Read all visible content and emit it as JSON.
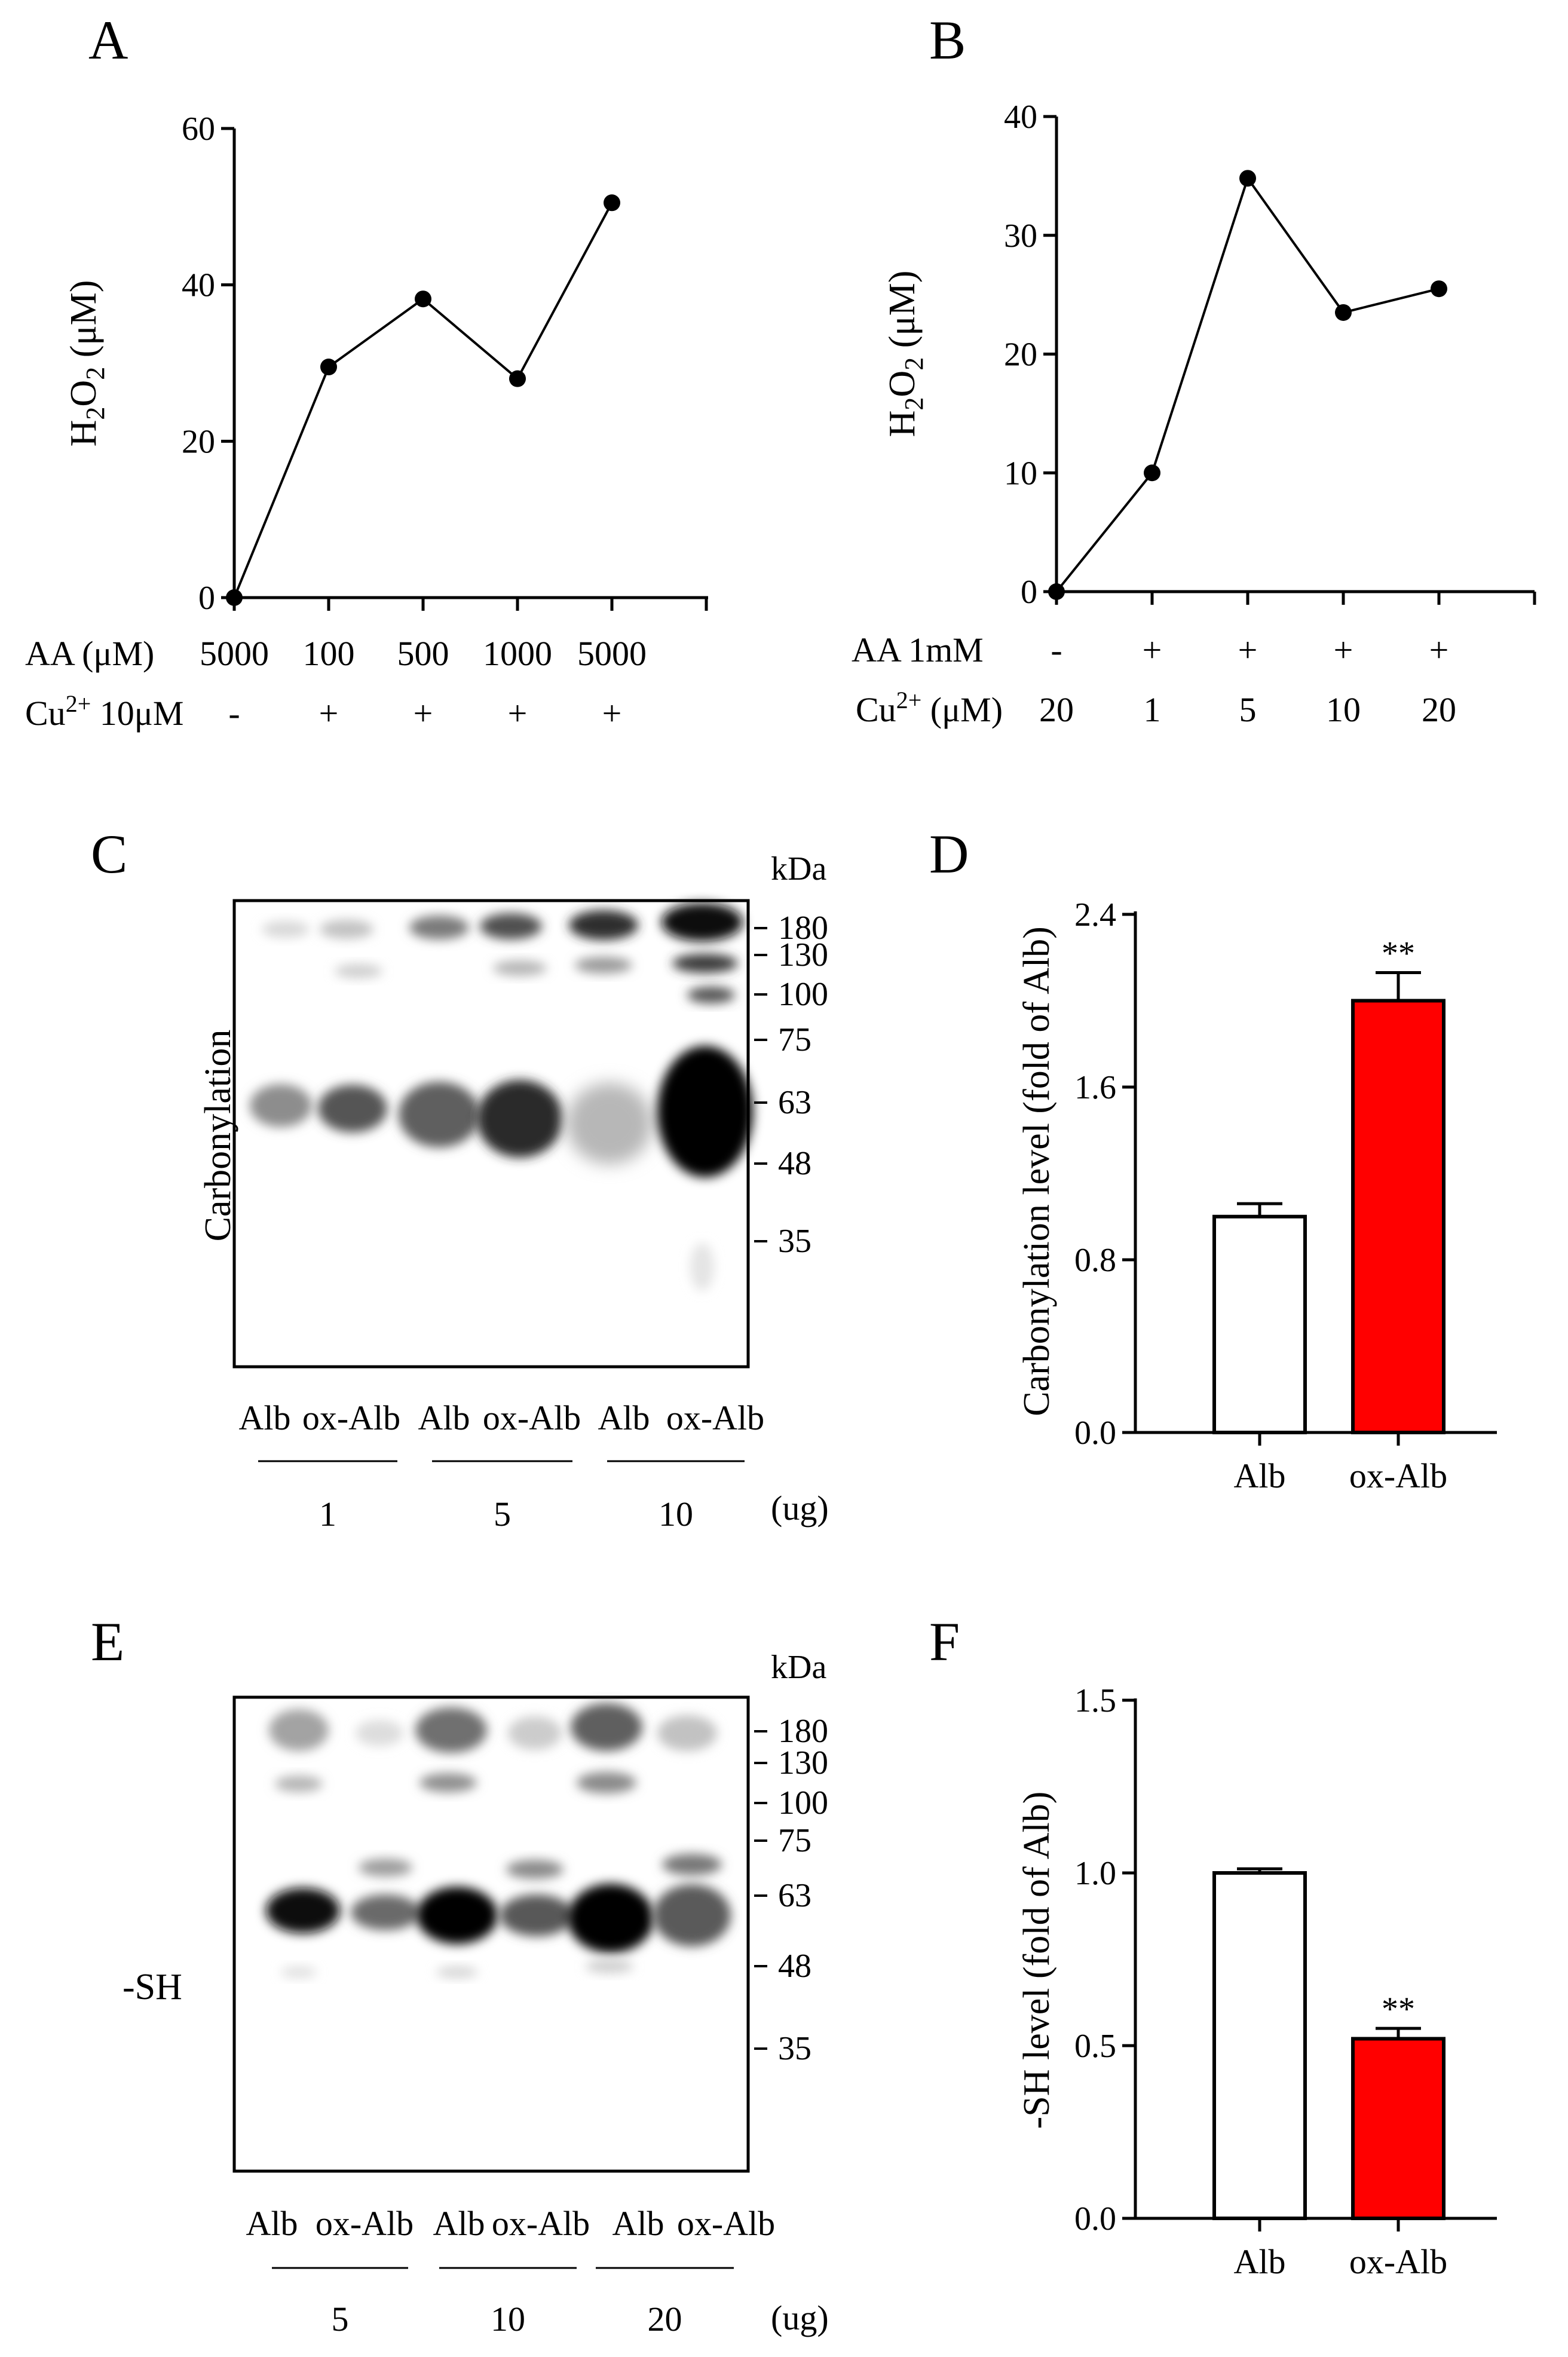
{
  "panels": {
    "A": "A",
    "B": "B",
    "C": "C",
    "D": "D",
    "E": "E",
    "F": "F"
  },
  "panel_A": {
    "y_title_main": "H",
    "y_title_sub1": "2",
    "y_title_mid": "O",
    "y_title_sub2": "2",
    "y_title_unit": " (μM)",
    "row1_label": "AA (μM)",
    "row1_values": [
      "5000",
      "100",
      "500",
      "1000",
      "5000"
    ],
    "row2_label_main": "Cu",
    "row2_label_sup": "2+",
    "row2_label_rest": " 10μM",
    "row2_values": [
      "-",
      "+",
      "+",
      "+",
      "+"
    ]
  },
  "panel_B": {
    "y_title_main": "H",
    "y_title_sub1": "2",
    "y_title_mid": "O",
    "y_title_sub2": "2",
    "y_title_unit": " (μM)",
    "row1_label": "AA 1mM",
    "row1_values": [
      "-",
      "+",
      "+",
      "+",
      "+"
    ],
    "row2_label_main": "Cu",
    "row2_label_sup": "2+",
    "row2_label_rest": " (μM)",
    "row2_values": [
      "20",
      "1",
      "5",
      "10",
      "20"
    ]
  },
  "panel_C": {
    "blot_label": "Carbonylation",
    "kda_label": "kDa",
    "markers": [
      "180",
      "130",
      "100",
      "75",
      "63",
      "48",
      "35"
    ],
    "lanes": [
      "Alb",
      "ox-Alb",
      "Alb",
      "ox-Alb",
      "Alb",
      "ox-Alb"
    ],
    "groups": [
      "1",
      "5",
      "10"
    ],
    "unit": "(ug)"
  },
  "panel_E": {
    "blot_label": "-SH",
    "kda_label": "kDa",
    "markers": [
      "180",
      "130",
      "100",
      "75",
      "63",
      "48",
      "35"
    ],
    "lanes": [
      "Alb",
      "ox-Alb",
      "Alb",
      "ox-Alb",
      "Alb",
      "ox-Alb"
    ],
    "groups": [
      "5",
      "10",
      "20"
    ],
    "unit": "(ug)"
  },
  "colors": {
    "line": "#000000",
    "bar_control": "#ffffff",
    "bar_treated": "#ff0000"
  },
  "chart_data": [
    {
      "id": "A",
      "type": "line",
      "title": "",
      "x": [
        1,
        2,
        3,
        4,
        5
      ],
      "series": [
        {
          "name": "H2O2",
          "values": [
            0,
            29.5,
            38.2,
            28.0,
            50.5
          ]
        }
      ],
      "ylabel": "H2O2 (μM)",
      "ylim": [
        0,
        60
      ],
      "yticks": [
        "0",
        "20",
        "40",
        "60"
      ]
    },
    {
      "id": "B",
      "type": "line",
      "title": "",
      "x": [
        1,
        2,
        3,
        4,
        5
      ],
      "series": [
        {
          "name": "H2O2",
          "values": [
            0,
            10,
            34.8,
            23.5,
            25.5
          ]
        }
      ],
      "ylabel": "H2O2 (μM)",
      "ylim": [
        0,
        40
      ],
      "yticks": [
        "0",
        "10",
        "20",
        "30",
        "40"
      ]
    },
    {
      "id": "D",
      "type": "bar",
      "categories": [
        "Alb",
        "ox-Alb"
      ],
      "values": [
        1.0,
        2.0
      ],
      "errors": [
        0.06,
        0.13
      ],
      "significance": [
        "",
        "**"
      ],
      "ylabel": "Carbonylation level (fold of Alb)",
      "ylim": [
        0,
        2.4
      ],
      "yticks": [
        "0.0",
        "0.8",
        "1.6",
        "2.4"
      ]
    },
    {
      "id": "F",
      "type": "bar",
      "categories": [
        "Alb",
        "ox-Alb"
      ],
      "values": [
        1.0,
        0.52
      ],
      "errors": [
        0.012,
        0.03
      ],
      "significance": [
        "",
        "**"
      ],
      "ylabel": "-SH level (fold of Alb)",
      "ylim": [
        0,
        1.5
      ],
      "yticks": [
        "0.0",
        "0.5",
        "1.0",
        "1.5"
      ]
    }
  ]
}
